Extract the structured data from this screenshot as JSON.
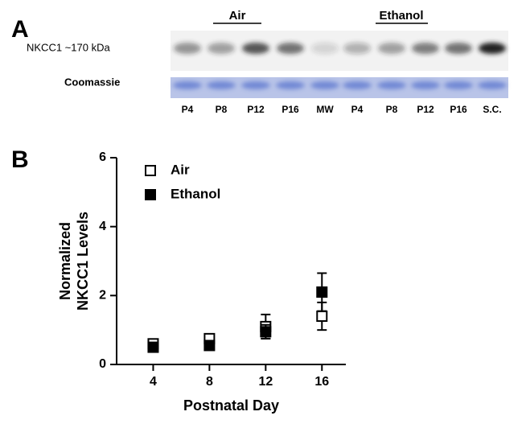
{
  "blot": {
    "panel": "A",
    "groups": [
      "Air",
      "Ethanol"
    ],
    "rows": [
      "NKCC1 ~170 kDa",
      "Coomassie"
    ],
    "lanes": [
      "P4",
      "P8",
      "P12",
      "P16",
      "MW",
      "P4",
      "P8",
      "P12",
      "P16",
      "S.C."
    ]
  },
  "chart_data": {
    "type": "scatter",
    "panel": "B",
    "xlabel": "Postnatal Day",
    "ylabel": [
      "Normalized",
      "NKCC1 Levels"
    ],
    "x": [
      4,
      8,
      12,
      16
    ],
    "xlim": [
      1.4,
      17.7
    ],
    "xticks": [
      4,
      8,
      12,
      16
    ],
    "ylim": [
      0,
      6
    ],
    "yticks": [
      0,
      2,
      4,
      6
    ],
    "legend": "upper left",
    "series": [
      {
        "name": "Air",
        "color": "#000000",
        "filled": false,
        "values": [
          0.6,
          0.75,
          1.1,
          1.4
        ],
        "errors": [
          0.05,
          0.05,
          0.35,
          0.4
        ]
      },
      {
        "name": "Ethanol",
        "color": "#000000",
        "filled": true,
        "values": [
          0.5,
          0.55,
          0.95,
          2.1
        ],
        "errors": [
          0.05,
          0.05,
          0.2,
          0.55
        ]
      }
    ]
  }
}
